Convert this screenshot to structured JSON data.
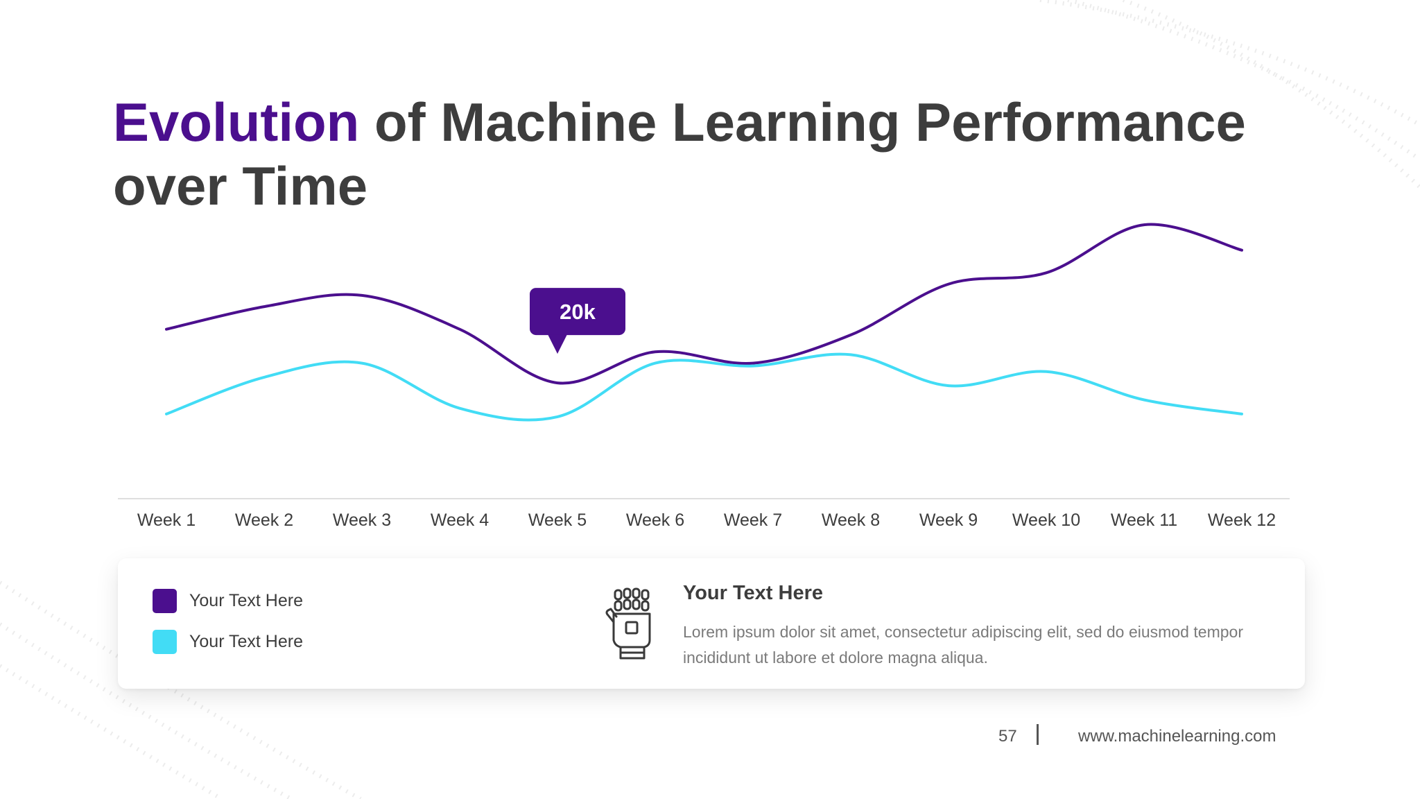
{
  "slide": {
    "title_accent": "Evolution",
    "title_rest": " of Machine Learning Performance over Time",
    "page_number": "57",
    "website": "www.machinelearning.com"
  },
  "chart_data": {
    "type": "line",
    "categories": [
      "Week 1",
      "Week 2",
      "Week 3",
      "Week 4",
      "Week 5",
      "Week 6",
      "Week 7",
      "Week 8",
      "Week 9",
      "Week 10",
      "Week 11",
      "Week 12"
    ],
    "series": [
      {
        "name": "Your Text Here",
        "color": "#4b0f8e",
        "values": [
          30,
          34,
          36,
          30,
          20.5,
          26,
          24,
          29,
          38,
          40,
          48.5,
          44
        ]
      },
      {
        "name": "Your Text Here",
        "color": "#42dcf5",
        "values": [
          15,
          21.5,
          24,
          16,
          14.5,
          24,
          23.5,
          25.5,
          20,
          22.5,
          17.5,
          15
        ]
      }
    ],
    "annotation": {
      "label": "20k",
      "series_index": 0,
      "category": "Week 5"
    },
    "ylim": [
      0,
      56
    ],
    "grid": false,
    "title": "",
    "xlabel": "",
    "ylabel": ""
  },
  "info_card": {
    "icon": "robot-hand-icon",
    "heading": "Your Text Here",
    "body": "Lorem ipsum dolor sit amet, consectetur adipiscing elit, sed do eiusmod tempor incididunt ut labore et dolore magna aliqua."
  }
}
